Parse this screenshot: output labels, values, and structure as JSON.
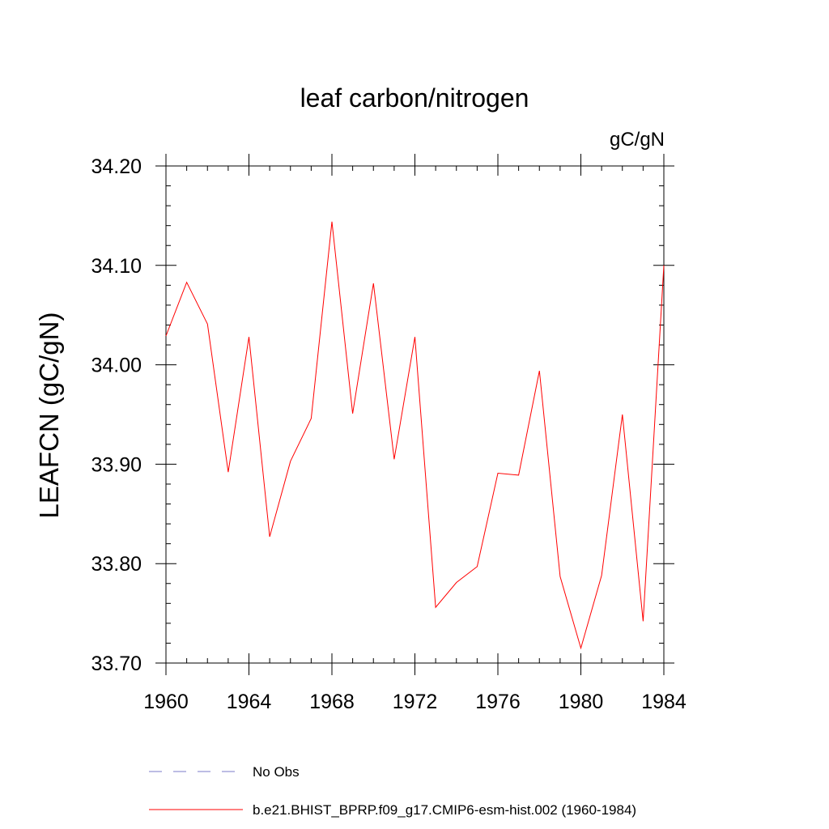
{
  "chart_data": {
    "type": "line",
    "title": "leaf carbon/nitrogen",
    "units_label": "gC/gN",
    "ylabel": "LEAFCN  (gC/gN)",
    "xlabel": "",
    "xlim": [
      1960,
      1984
    ],
    "ylim": [
      33.7,
      34.2
    ],
    "x_ticks": [
      1960,
      1964,
      1968,
      1972,
      1976,
      1980,
      1984
    ],
    "y_ticks": [
      "33.70",
      "33.80",
      "33.90",
      "34.00",
      "34.10",
      "34.20"
    ],
    "y_tick_values": [
      33.7,
      33.8,
      33.9,
      34.0,
      34.1,
      34.2
    ],
    "grid": false,
    "legend_placement": "bottom",
    "series": [
      {
        "name": "b.e21.BHIST_BPRP.f09_g17.CMIP6-esm-hist.002 (1960-1984)",
        "color": "#ff0000",
        "x": [
          1960,
          1961,
          1962,
          1963,
          1964,
          1965,
          1966,
          1967,
          1968,
          1969,
          1970,
          1971,
          1972,
          1973,
          1974,
          1975,
          1976,
          1977,
          1978,
          1979,
          1980,
          1981,
          1982,
          1983,
          1984
        ],
        "values": [
          34.029,
          34.083,
          34.041,
          33.892,
          34.028,
          33.827,
          33.903,
          33.946,
          34.144,
          33.951,
          34.082,
          33.905,
          34.028,
          33.756,
          33.781,
          33.797,
          33.891,
          33.889,
          33.994,
          33.787,
          33.715,
          33.788,
          33.95,
          33.742,
          34.1
        ]
      }
    ],
    "legend": [
      {
        "label": "No Obs",
        "color": "#7b7bc9",
        "style": "dashed"
      },
      {
        "label": "b.e21.BHIST_BPRP.f09_g17.CMIP6-esm-hist.002 (1960-1984)",
        "color": "#ff0000",
        "style": "solid"
      }
    ]
  }
}
